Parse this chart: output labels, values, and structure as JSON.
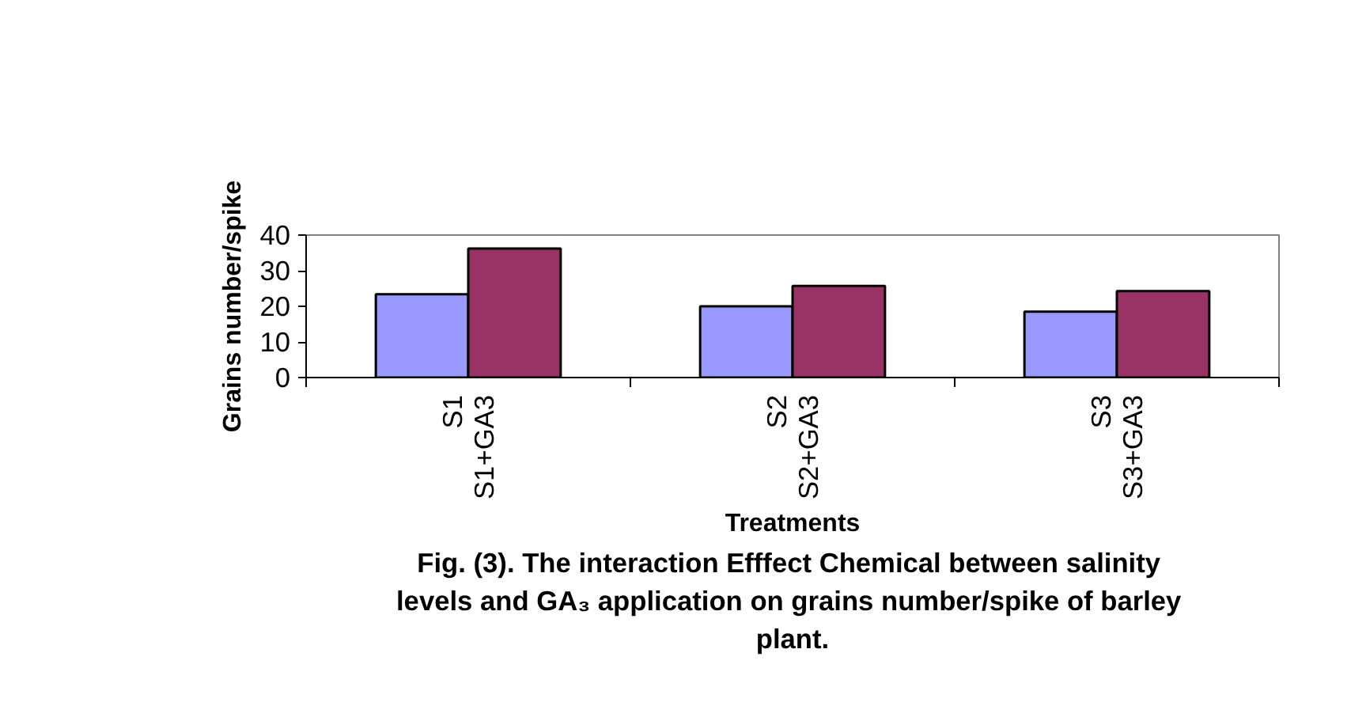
{
  "chart_data": {
    "type": "bar",
    "title": "Fig. (3). The interaction Efffect Chemical  between salinity levels and GA₃ application on  grains number/spike of barley plant.",
    "xlabel": "Treatments",
    "ylabel": "Grains number/spike",
    "categories": [
      "S1\nS1+GA3",
      "S2\nS2+GA3",
      "S3\nS3+GA3"
    ],
    "series": [
      {
        "color": "#9999ff",
        "values": [
          23.4,
          20.0,
          18.5
        ]
      },
      {
        "color": "#993366",
        "values": [
          36.2,
          25.7,
          24.3
        ]
      }
    ],
    "ylim": [
      0,
      40
    ],
    "yticks": [
      0,
      10,
      20,
      30,
      40
    ],
    "grid": false
  }
}
